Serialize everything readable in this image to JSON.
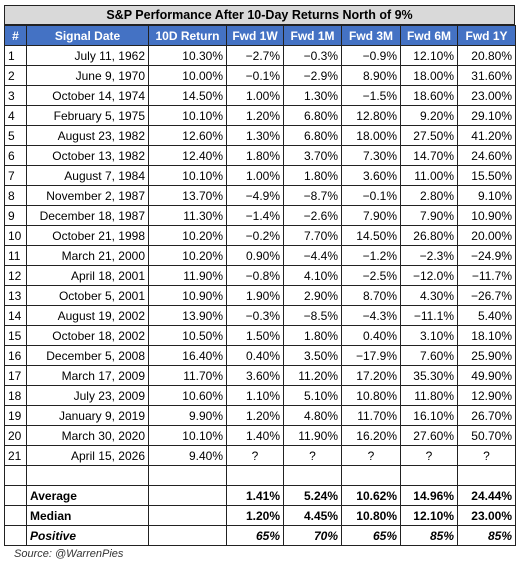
{
  "title": "S&P Performance After 10-Day Returns North of 9%",
  "table": {
    "columns": [
      "#",
      "Signal Date",
      "10D Return",
      "Fwd 1W",
      "Fwd 1M",
      "Fwd 3M",
      "Fwd 6M",
      "Fwd 1Y"
    ],
    "rows": [
      [
        "1",
        "July 11, 1962",
        "10.30%",
        "−2.7%",
        "−0.3%",
        "−0.9%",
        "12.10%",
        "20.80%"
      ],
      [
        "2",
        "June 9, 1970",
        "10.00%",
        "−0.1%",
        "−2.9%",
        "8.90%",
        "18.00%",
        "31.60%"
      ],
      [
        "3",
        "October 14, 1974",
        "14.50%",
        "1.00%",
        "1.30%",
        "−1.5%",
        "18.60%",
        "23.00%"
      ],
      [
        "4",
        "February 5, 1975",
        "10.10%",
        "1.20%",
        "6.80%",
        "12.80%",
        "9.20%",
        "29.10%"
      ],
      [
        "5",
        "August 23, 1982",
        "12.60%",
        "1.30%",
        "6.80%",
        "18.00%",
        "27.50%",
        "41.20%"
      ],
      [
        "6",
        "October 13, 1982",
        "12.40%",
        "1.80%",
        "3.70%",
        "7.30%",
        "14.70%",
        "24.60%"
      ],
      [
        "7",
        "August 7, 1984",
        "10.10%",
        "1.00%",
        "1.80%",
        "3.60%",
        "11.00%",
        "15.50%"
      ],
      [
        "8",
        "November 2, 1987",
        "13.70%",
        "−4.9%",
        "−8.7%",
        "−0.1%",
        "2.80%",
        "9.10%"
      ],
      [
        "9",
        "December 18, 1987",
        "11.30%",
        "−1.4%",
        "−2.6%",
        "7.90%",
        "7.90%",
        "10.90%"
      ],
      [
        "10",
        "October 21, 1998",
        "10.20%",
        "−0.2%",
        "7.70%",
        "14.50%",
        "26.80%",
        "20.00%"
      ],
      [
        "11",
        "March 21, 2000",
        "10.20%",
        "0.90%",
        "−4.4%",
        "−1.2%",
        "−2.3%",
        "−24.9%"
      ],
      [
        "12",
        "April 18, 2001",
        "11.90%",
        "−0.8%",
        "4.10%",
        "−2.5%",
        "−12.0%",
        "−11.7%"
      ],
      [
        "13",
        "October 5, 2001",
        "10.90%",
        "1.90%",
        "2.90%",
        "8.70%",
        "4.30%",
        "−26.7%"
      ],
      [
        "14",
        "August 19, 2002",
        "13.90%",
        "−0.3%",
        "−8.5%",
        "−4.3%",
        "−11.1%",
        "5.40%"
      ],
      [
        "15",
        "October 18, 2002",
        "10.50%",
        "1.50%",
        "1.80%",
        "0.40%",
        "3.10%",
        "18.10%"
      ],
      [
        "16",
        "December 5, 2008",
        "16.40%",
        "0.40%",
        "3.50%",
        "−17.9%",
        "7.60%",
        "25.90%"
      ],
      [
        "17",
        "March 17, 2009",
        "11.70%",
        "3.60%",
        "11.20%",
        "17.20%",
        "35.30%",
        "49.90%"
      ],
      [
        "18",
        "July 23, 2009",
        "10.60%",
        "1.10%",
        "5.10%",
        "10.80%",
        "11.80%",
        "12.90%"
      ],
      [
        "19",
        "January 9, 2019",
        "9.90%",
        "1.20%",
        "4.80%",
        "11.70%",
        "16.10%",
        "26.70%"
      ],
      [
        "20",
        "March 30, 2020",
        "10.10%",
        "1.40%",
        "11.90%",
        "16.20%",
        "27.60%",
        "50.70%"
      ],
      [
        "21",
        "April 15, 2026",
        "9.40%",
        "?",
        "?",
        "?",
        "?",
        "?"
      ]
    ],
    "summary": [
      {
        "label": "Average",
        "values": [
          "1.41%",
          "5.24%",
          "10.62%",
          "14.96%",
          "24.44%"
        ]
      },
      {
        "label": "Median",
        "values": [
          "1.20%",
          "4.45%",
          "10.80%",
          "12.10%",
          "23.00%"
        ]
      },
      {
        "label": "Positive",
        "values": [
          "65%",
          "70%",
          "65%",
          "85%",
          "85%"
        ]
      }
    ]
  },
  "source": "Source: @WarrenPies"
}
